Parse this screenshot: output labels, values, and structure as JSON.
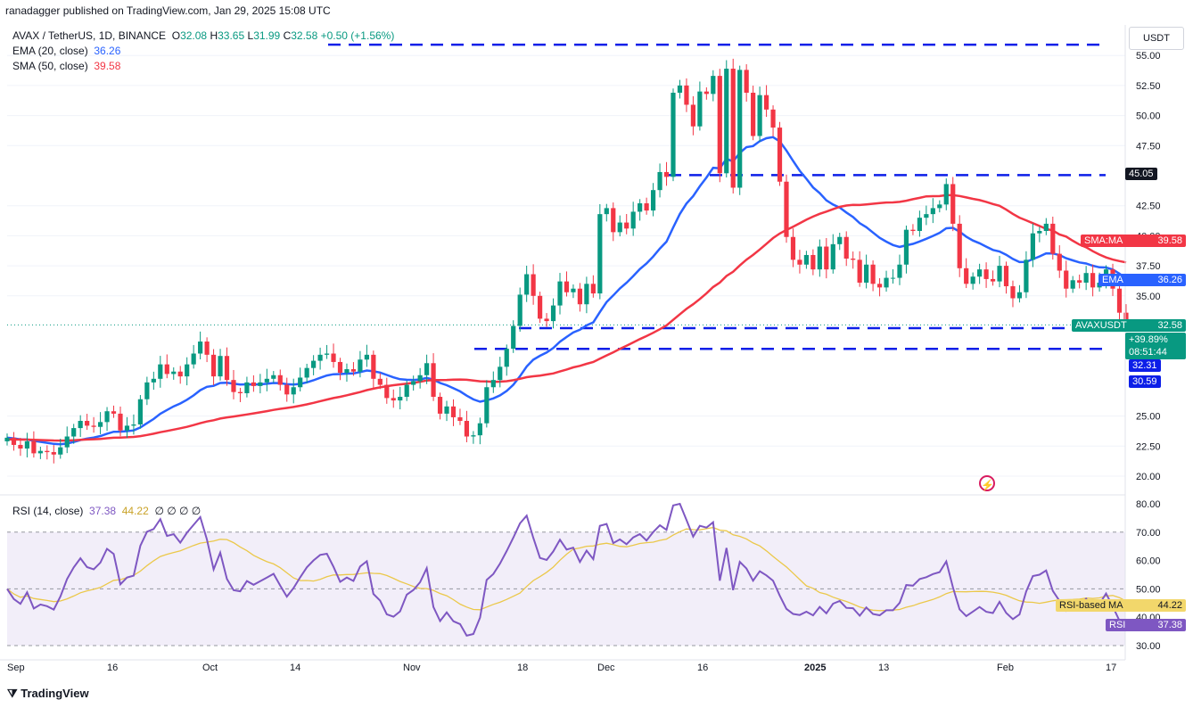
{
  "header": {
    "published": "ranadagger published on TradingView.com, Jan 29, 2025 15:08 UTC",
    "symbol": "AVAX / TetherUS, 1D, BINANCE",
    "o_label": "O",
    "o": "32.08",
    "h_label": "H",
    "h": "33.65",
    "l_label": "L",
    "l": "31.99",
    "c_label": "C",
    "c": "32.58",
    "change": "+0.50 (+1.56%)",
    "ema_label": "EMA (20, close)",
    "ema_value": "36.26",
    "sma_label": "SMA (50, close)",
    "sma_value": "39.58",
    "rsi_label": "RSI (14, close)",
    "rsi_value": "37.38",
    "rsi_ma_value": "44.22",
    "rsi_extra": "∅ ∅ ∅ ∅"
  },
  "axis": {
    "currency": "USDT",
    "price_ticks": [
      "55.00",
      "52.50",
      "50.00",
      "47.50",
      "42.50",
      "40.00",
      "37.50",
      "35.00",
      "25.00",
      "22.50",
      "20.00"
    ],
    "rsi_ticks": [
      "80.00",
      "70.00",
      "60.00",
      "50.00",
      "40.00",
      "30.00"
    ],
    "x_ticks": [
      "Sep",
      "16",
      "Oct",
      "14",
      "Nov",
      "18",
      "Dec",
      "16",
      "2025",
      "13",
      "Feb",
      "17"
    ]
  },
  "badges": {
    "level_top": "45.05",
    "sma": {
      "label": "SMA:MA",
      "value": "39.58"
    },
    "ema": {
      "label": "EMA",
      "value": "36.26"
    },
    "price": {
      "label": "AVAXUSDT",
      "value": "32.58",
      "pct": "+39.89%",
      "time": "08:51:44"
    },
    "level_mid": "32.31",
    "level_low": "30.59",
    "rsi_ma": {
      "label": "RSI-based MA",
      "value": "44.22"
    },
    "rsi": {
      "label": "RSI",
      "value": "37.38"
    }
  },
  "footer": {
    "brand": "TradingView"
  },
  "colors": {
    "up": "#089981",
    "down": "#f23645",
    "ema": "#2962ff",
    "sma": "#f23645",
    "rsi": "#7e57c2",
    "rsi_ma": "#ebc84a",
    "level": "#0d1fe8",
    "grid": "#f0f3fa"
  },
  "chart_data": [
    {
      "type": "candlestick",
      "title": "AVAX / TetherUS, 1D, BINANCE",
      "x_range": [
        "2024-09-01",
        "2025-02-20"
      ],
      "ylim": [
        19,
        56.5
      ],
      "key_levels": [
        55.9,
        45.05,
        32.31,
        30.59
      ],
      "closes": [
        23.2,
        22.6,
        22.3,
        22.9,
        21.9,
        22.1,
        22.0,
        21.8,
        22.4,
        23.3,
        24.0,
        24.6,
        24.2,
        24.1,
        24.5,
        25.4,
        25.2,
        23.8,
        24.2,
        24.3,
        26.4,
        27.8,
        28.1,
        29.3,
        28.5,
        28.7,
        28.3,
        29.3,
        30.2,
        31.2,
        30.1,
        28.3,
        30.0,
        28.0,
        27.0,
        26.9,
        27.8,
        27.5,
        27.8,
        28.1,
        28.4,
        27.6,
        26.8,
        27.4,
        28.2,
        29.0,
        29.6,
        30.1,
        30.2,
        29.5,
        28.6,
        28.9,
        28.7,
        29.7,
        30.1,
        28.1,
        27.6,
        26.5,
        26.3,
        26.6,
        27.6,
        27.9,
        28.4,
        29.4,
        26.6,
        25.2,
        25.8,
        24.9,
        24.6,
        23.3,
        23.4,
        24.4,
        27.4,
        28.0,
        29.1,
        30.6,
        32.5,
        35.1,
        36.8,
        35.0,
        33.1,
        32.9,
        34.2,
        36.2,
        35.3,
        35.6,
        34.3,
        36.0,
        35.2,
        41.8,
        42.3,
        40.3,
        41.1,
        40.6,
        42.0,
        42.7,
        42.1,
        43.8,
        45.3,
        44.9,
        51.9,
        52.5,
        50.9,
        49.1,
        52.0,
        51.8,
        53.3,
        45.2,
        53.9,
        44.0,
        53.8,
        51.9,
        48.3,
        51.7,
        50.5,
        49.0,
        44.5,
        39.9,
        38.0,
        37.6,
        38.4,
        37.2,
        39.1,
        37.2,
        39.3,
        39.9,
        38.1,
        38.0,
        36.1,
        37.6,
        36.0,
        35.7,
        36.5,
        36.5,
        37.6,
        40.5,
        40.4,
        41.5,
        41.8,
        42.3,
        42.6,
        44.3,
        41.0,
        37.3,
        36.0,
        36.6,
        37.2,
        36.4,
        36.2,
        37.5,
        35.8,
        34.8,
        35.3,
        38.0,
        40.2,
        40.4,
        41.0,
        38.5,
        37.1,
        35.6,
        36.3,
        36.1,
        36.9,
        35.7,
        36.1,
        37.2,
        35.6,
        33.6,
        32.6
      ],
      "ema20_last": 36.26,
      "sma50_last": 39.58
    },
    {
      "type": "line",
      "title": "RSI (14, close)",
      "ylim": [
        30,
        80
      ],
      "bands": [
        30,
        50,
        70
      ],
      "rsi_last": 37.38,
      "rsi_ma_last": 44.22
    }
  ]
}
